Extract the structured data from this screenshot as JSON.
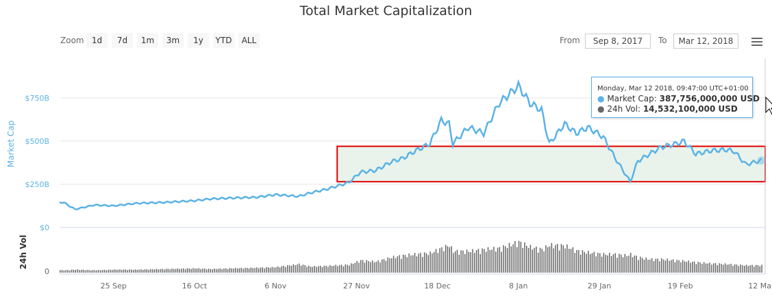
{
  "title": "Total Market Capitalization",
  "zoom": {
    "label": "Zoom",
    "buttons": [
      "1d",
      "7d",
      "1m",
      "3m",
      "1y",
      "YTD",
      "ALL"
    ]
  },
  "range": {
    "from_label": "From",
    "from": "Sep 8, 2017",
    "to_label": "To",
    "to": "Mar 12, 2018"
  },
  "tooltip": {
    "date": "Monday, Mar 12 2018, 09:47:00 UTC+01:00",
    "cap_label": "Market Cap:",
    "cap_value": "387,756,000,000 USD",
    "vol_label": "24h Vol:",
    "vol_value": "14,532,100,000 USD"
  },
  "colors": {
    "cap": "#5ab2e6",
    "vol": "#666666",
    "highlight": "#e00000"
  },
  "chart_data": {
    "type": "line",
    "title": "Total Market Capitalization",
    "ylabel": "Market Cap",
    "ylabel2": "24h Vol",
    "ylim": [
      0,
      1000
    ],
    "yticks": [
      "$0",
      "$250B",
      "$500B",
      "$750B"
    ],
    "ytick_values": [
      0,
      250,
      500,
      750
    ],
    "vol_ytick": "0",
    "vol_ylim": [
      0,
      60
    ],
    "xticks": [
      "25 Sep",
      "16 Oct",
      "6 Nov",
      "27 Nov",
      "18 Dec",
      "8 Jan",
      "29 Jan",
      "19 Feb",
      "12 Mar"
    ],
    "xtick_days": [
      17,
      38,
      59,
      80,
      101,
      122,
      143,
      164,
      185
    ],
    "days": [
      0,
      4,
      7,
      12,
      17,
      23,
      30,
      38,
      42,
      47,
      54,
      59,
      65,
      68,
      72,
      78,
      81,
      85,
      89,
      92,
      95,
      99,
      102,
      104,
      105,
      109,
      113,
      117,
      121,
      122,
      125,
      128,
      130,
      134,
      137,
      140,
      144,
      147,
      150,
      151,
      153,
      156,
      159,
      163,
      165,
      168,
      172,
      176,
      178,
      181,
      185
    ],
    "market_cap": [
      150,
      145,
      105,
      130,
      125,
      140,
      145,
      155,
      165,
      170,
      175,
      190,
      180,
      200,
      220,
      260,
      320,
      330,
      380,
      400,
      440,
      485,
      620,
      600,
      485,
      580,
      545,
      720,
      800,
      820,
      720,
      680,
      485,
      600,
      545,
      580,
      525,
      405,
      300,
      265,
      385,
      425,
      465,
      485,
      500,
      425,
      445,
      450,
      440,
      365,
      388
    ],
    "volume": [
      5,
      4,
      5,
      4,
      5,
      5,
      6,
      7,
      6,
      7,
      8,
      9,
      14,
      10,
      11,
      13,
      20,
      18,
      25,
      28,
      30,
      32,
      40,
      45,
      35,
      35,
      38,
      40,
      48,
      50,
      42,
      38,
      45,
      44,
      36,
      33,
      30,
      30,
      28,
      30,
      25,
      22,
      22,
      20,
      19,
      17,
      15,
      14,
      13,
      12,
      12
    ],
    "highlight_box": {
      "from_day": 75,
      "to_day": 186,
      "y_range": [
        265,
        470
      ]
    }
  }
}
